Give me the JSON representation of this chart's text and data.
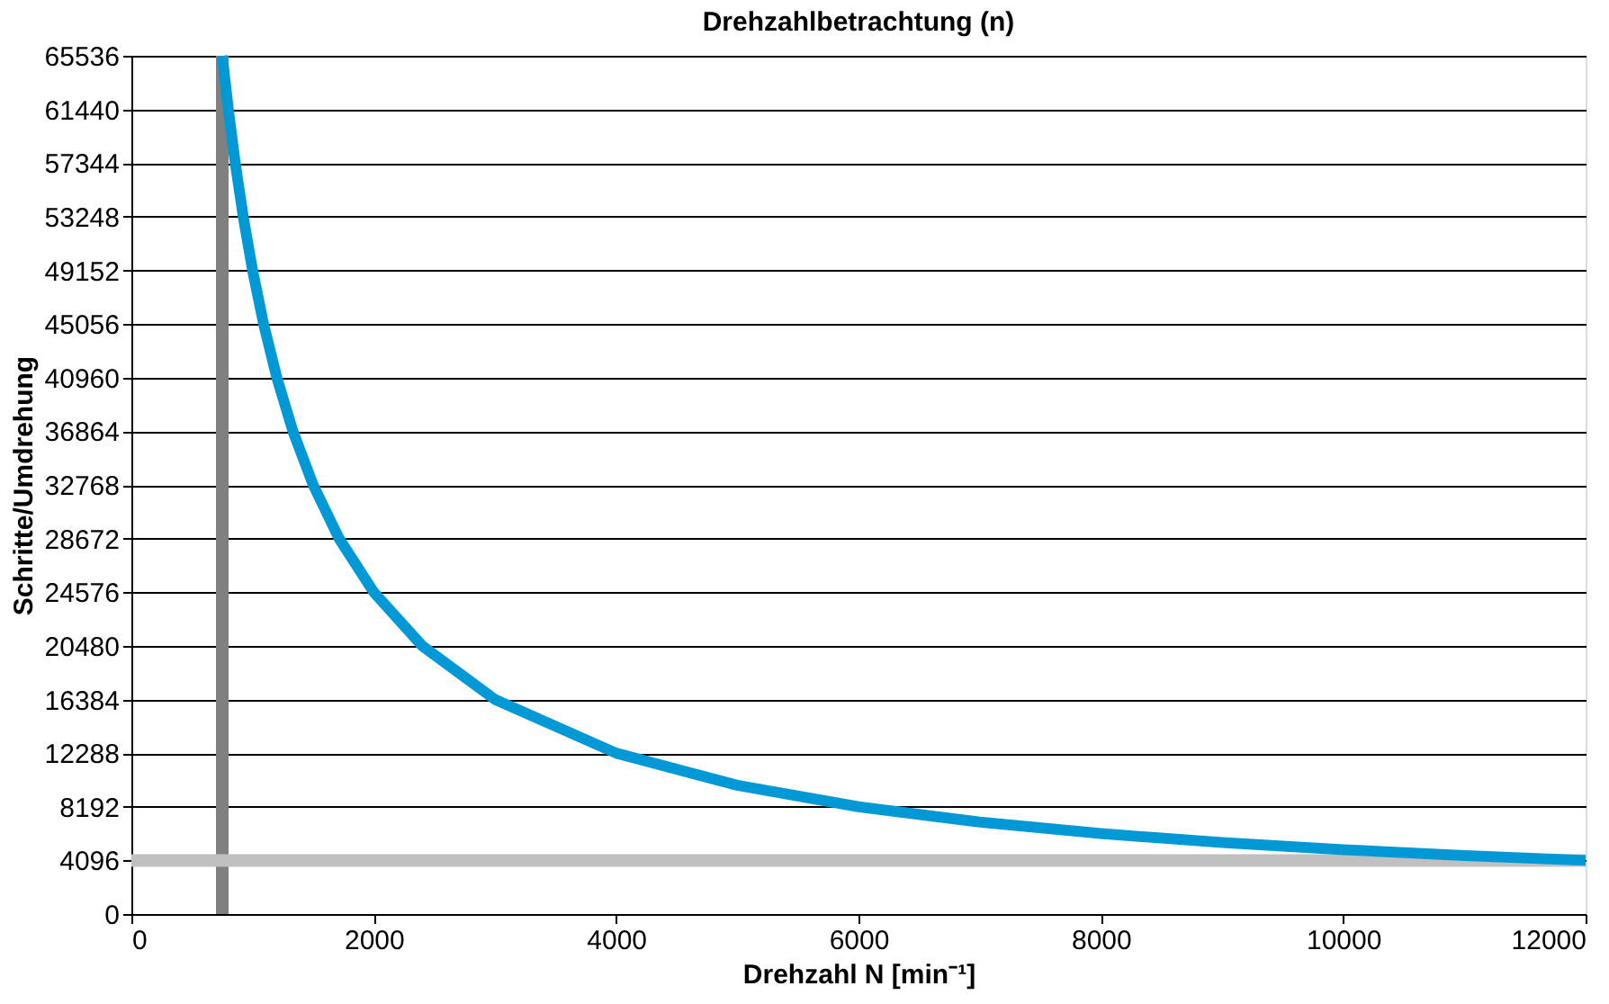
{
  "chart_data": {
    "type": "line",
    "title": "Drehzahlbetrachtung (n)",
    "xlabel": "Drehzahl N [min⁻¹]",
    "ylabel": "Schritte/Umdrehung",
    "x": [
      750,
      800,
      857,
      923,
      1000,
      1091,
      1200,
      1333,
      1500,
      1714,
      2000,
      2400,
      3000,
      4000,
      5000,
      6000,
      7000,
      8000,
      9000,
      10000,
      11000,
      12000
    ],
    "series": [
      {
        "color": "#0099d6",
        "values": [
          65536,
          61440,
          57344,
          53248,
          49152,
          45056,
          40960,
          36864,
          32768,
          28672,
          24576,
          20480,
          16384,
          12288,
          9830,
          8192,
          7022,
          6144,
          5461,
          4915,
          4468,
          4096
        ]
      }
    ],
    "xlim": [
      0,
      12000
    ],
    "xticks": [
      0,
      2000,
      4000,
      6000,
      8000,
      10000,
      12000
    ],
    "ylim": [
      0,
      65536
    ],
    "yticks": [
      0,
      4096,
      8192,
      12288,
      16384,
      20480,
      24576,
      28672,
      32768,
      36864,
      40960,
      45056,
      49152,
      53248,
      57344,
      61440,
      65536
    ],
    "ref_lines": [
      {
        "axis": "x",
        "value": 750,
        "color": "#808080"
      },
      {
        "axis": "y",
        "value": 4096,
        "color": "#c0c0c0"
      }
    ],
    "grid": "y",
    "marker": "none",
    "line_style": "solid"
  }
}
